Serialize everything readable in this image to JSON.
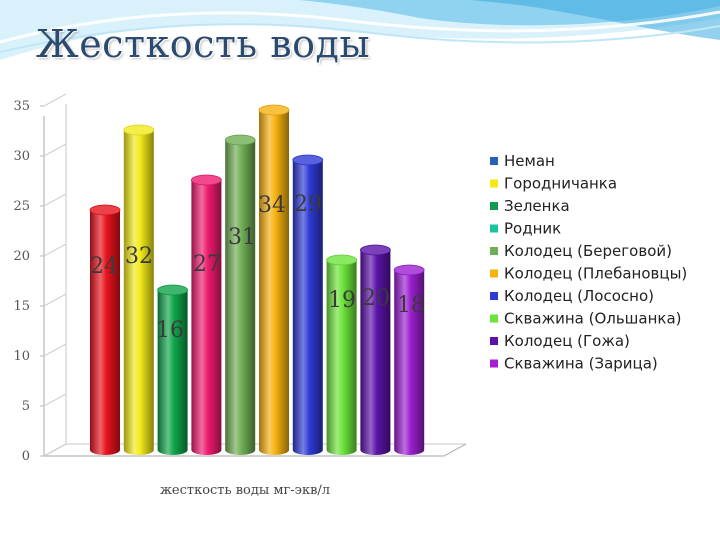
{
  "slide": {
    "title": "Жесткость воды"
  },
  "chart_data": {
    "type": "bar",
    "title": "",
    "xlabel": "жесткость воды мг-экв/л",
    "ylabel": "",
    "ylim": [
      0,
      35
    ],
    "yticks": [
      "0",
      "5",
      "10",
      "15",
      "20",
      "25",
      "30",
      "35"
    ],
    "grid": false,
    "legend_position": "right",
    "series": [
      {
        "name": "Неман",
        "value": 24,
        "label": "24",
        "color": "#e8121c"
      },
      {
        "name": "Городничанка",
        "value": 32,
        "label": "32",
        "color": "#f2ea1a"
      },
      {
        "name": "Зеленка",
        "value": 16,
        "label": "16",
        "color": "#0fa44a"
      },
      {
        "name": "Родник",
        "value": 27,
        "label": "27",
        "color": "#ee1b6e"
      },
      {
        "name": "Колодец (Береговой)",
        "value": 31,
        "label": "31",
        "color": "#6fae54"
      },
      {
        "name": "Колодец (Плебановцы)",
        "value": 34,
        "label": "34",
        "color": "#f6b20f"
      },
      {
        "name": "Колодец (Лососно)",
        "value": 29,
        "label": "29",
        "color": "#2e3ad6"
      },
      {
        "name": "Скважина (Ольшанка)",
        "value": 19,
        "label": "19",
        "color": "#6be33a"
      },
      {
        "name": "Колодец (Гожа)",
        "value": 20,
        "label": "20",
        "color": "#5a12a8"
      },
      {
        "name": "Скважина (Зарица)",
        "value": 18,
        "label": "18",
        "color": "#9b1fcf"
      }
    ],
    "legend_swatches": [
      "#2362b5",
      "#f5ea12",
      "#109a52",
      "#19c49a",
      "#6fae54",
      "#f6b20f",
      "#2e3ad6",
      "#6be33a",
      "#5a12a8",
      "#a720d6"
    ]
  },
  "colors": {
    "title": "#2b4a6f",
    "axis": "#b0b0b0",
    "swoosh_light": "#d9f1fb",
    "swoosh_mid": "#8fd3f0",
    "swoosh_dark": "#3aa9de"
  }
}
